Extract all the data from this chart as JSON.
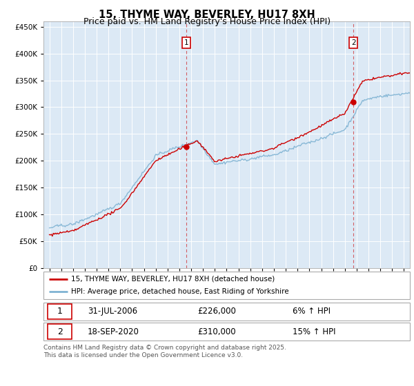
{
  "title": "15, THYME WAY, BEVERLEY, HU17 8XH",
  "subtitle": "Price paid vs. HM Land Registry's House Price Index (HPI)",
  "legend_line1": "15, THYME WAY, BEVERLEY, HU17 8XH (detached house)",
  "legend_line2": "HPI: Average price, detached house, East Riding of Yorkshire",
  "sale1_date": "31-JUL-2006",
  "sale1_price": "£226,000",
  "sale1_hpi": "6% ↑ HPI",
  "sale1_year": 2006.58,
  "sale1_value": 226000,
  "sale2_date": "18-SEP-2020",
  "sale2_price": "£310,000",
  "sale2_hpi": "15% ↑ HPI",
  "sale2_year": 2020.72,
  "sale2_value": 310000,
  "footer": "Contains HM Land Registry data © Crown copyright and database right 2025.\nThis data is licensed under the Open Government Licence v3.0.",
  "red_color": "#cc0000",
  "blue_color": "#7fb3d3",
  "yticks": [
    0,
    50000,
    100000,
    150000,
    200000,
    250000,
    300000,
    350000,
    400000,
    450000
  ],
  "xlim_start": 1994.5,
  "xlim_end": 2025.5,
  "plot_bg": "#dce9f5"
}
